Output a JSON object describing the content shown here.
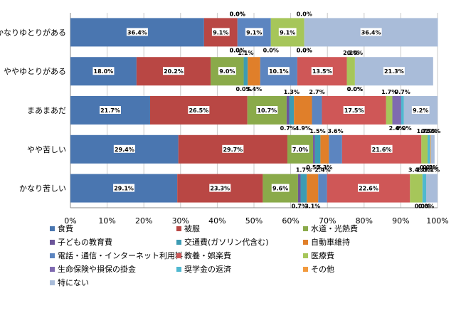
{
  "chart_data": {
    "type": "bar",
    "orientation": "horizontal",
    "stacked": "percent",
    "categories": [
      "かなりゆとりがある",
      "ややゆとりがある",
      "まあまあだ",
      "やや苦しい",
      "かなり苦しい"
    ],
    "series": [
      {
        "name": "食費",
        "color": "#4a76b0",
        "values": [
          36.4,
          18.0,
          21.7,
          29.4,
          29.1
        ]
      },
      {
        "name": "被服",
        "color": "#b94744",
        "values": [
          9.1,
          20.2,
          26.5,
          29.7,
          23.3
        ]
      },
      {
        "name": "水道・光熱費",
        "color": "#8aaa4a",
        "values": [
          0.0,
          9.0,
          10.7,
          7.0,
          9.6
        ]
      },
      {
        "name": "子どもの教育費",
        "color": "#6c559a",
        "values": [
          0.0,
          0.0,
          0.7,
          0.5,
          0.7
        ]
      },
      {
        "name": "交通費(ガソリン代含む)",
        "color": "#3d9bb3",
        "values": [
          0.0,
          1.1,
          1.3,
          1.5,
          1.7
        ]
      },
      {
        "name": "自動車維持",
        "color": "#e07f2a",
        "values": [
          0.0,
          3.4,
          4.9,
          2.3,
          3.1
        ]
      },
      {
        "name": "電話・通信・インターネット利用料",
        "color": "#5c85c0",
        "values": [
          9.1,
          10.1,
          2.7,
          3.6,
          2.4
        ]
      },
      {
        "name": "教養・娯楽費",
        "color": "#cf5757",
        "values": [
          0.0,
          13.5,
          17.5,
          21.6,
          22.6
        ]
      },
      {
        "name": "医療費",
        "color": "#a6c65a",
        "values": [
          9.1,
          2.2,
          1.7,
          1.7,
          3.4
        ]
      },
      {
        "name": "生命保険や損保の掛金",
        "color": "#7f6ab0",
        "values": [
          0.0,
          0.0,
          2.4,
          0.0,
          0.0
        ]
      },
      {
        "name": "奨学金の返済",
        "color": "#4fb8d0",
        "values": [
          0.0,
          0.0,
          0.7,
          0.7,
          1.0
        ]
      },
      {
        "name": "その他",
        "color": "#f29a3e",
        "values": [
          0.0,
          0.0,
          0.0,
          0.2,
          0.0
        ]
      },
      {
        "name": "特にない",
        "color": "#a9bcd9",
        "values": [
          36.4,
          21.3,
          9.2,
          1.0,
          3.1
        ]
      }
    ],
    "xlim": [
      0,
      100
    ],
    "x_ticks": [
      "0%",
      "10%",
      "20%",
      "30%",
      "40%",
      "50%",
      "60%",
      "70%",
      "80%",
      "90%",
      "100%"
    ],
    "value_suffix": "%",
    "grid": true,
    "legend": "bottom"
  }
}
